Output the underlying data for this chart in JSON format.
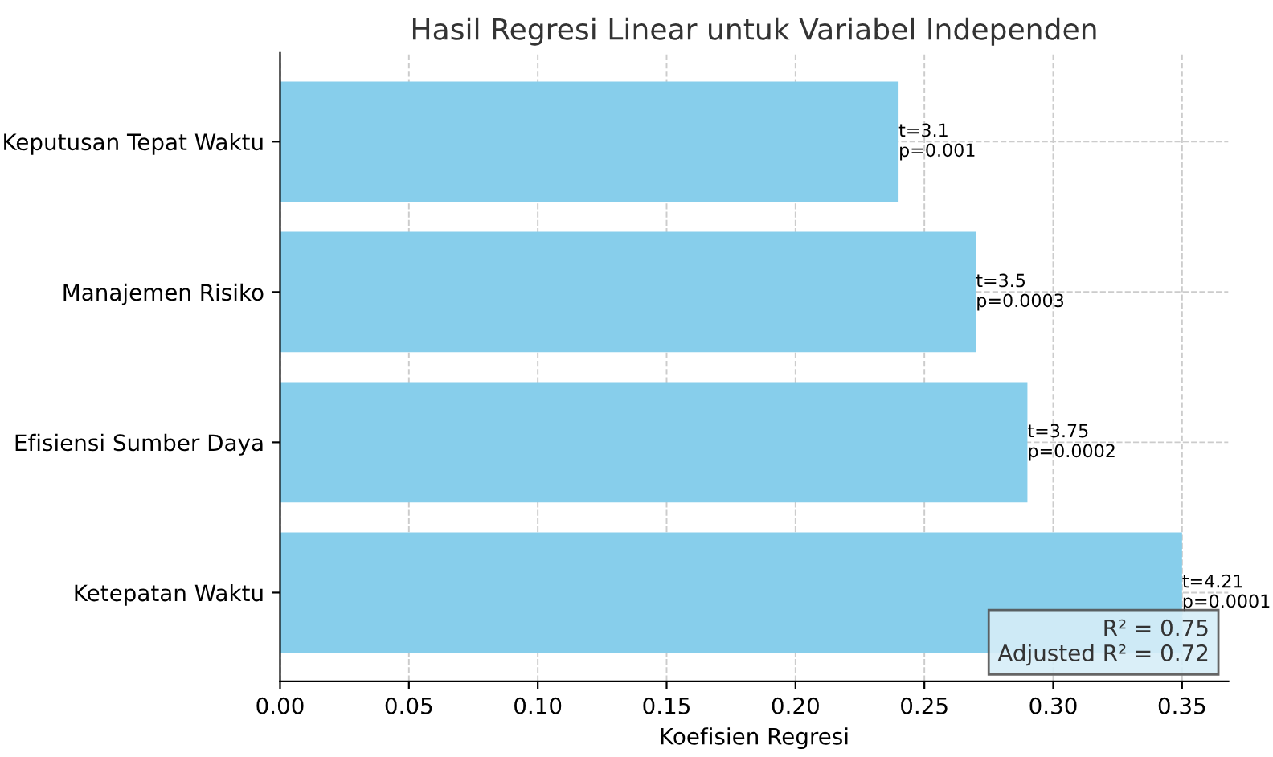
{
  "chart_data": {
    "type": "bar",
    "orientation": "horizontal",
    "title": "Hasil Regresi Linear untuk Variabel Independen",
    "xlabel": "Koefisien Regresi",
    "categories": [
      "Keputusan Tepat Waktu",
      "Manajemen Risiko",
      "Efisiensi Sumber Daya",
      "Ketepatan Waktu"
    ],
    "values": [
      0.24,
      0.27,
      0.29,
      0.35
    ],
    "color": "#87ceeb",
    "value_labels": [
      "t=3.1\np=0.001",
      "t=3.5\np=0.0003",
      "t=3.75\np=0.0002",
      "t=4.21\np=0.0001"
    ],
    "xlim": [
      0,
      0.368
    ],
    "xticks": [
      {
        "value": 0,
        "label": "0.00"
      },
      {
        "value": 0.05,
        "label": "0.05"
      },
      {
        "value": 0.1,
        "label": "0.10"
      },
      {
        "value": 0.15,
        "label": "0.15"
      },
      {
        "value": 0.2,
        "label": "0.20"
      },
      {
        "value": 0.25,
        "label": "0.25"
      },
      {
        "value": 0.3,
        "label": "0.30"
      },
      {
        "value": 0.35,
        "label": "0.35"
      }
    ],
    "grid": true,
    "annotations": [
      "R² = 0.75\nAdjusted R² = 0.72"
    ]
  }
}
